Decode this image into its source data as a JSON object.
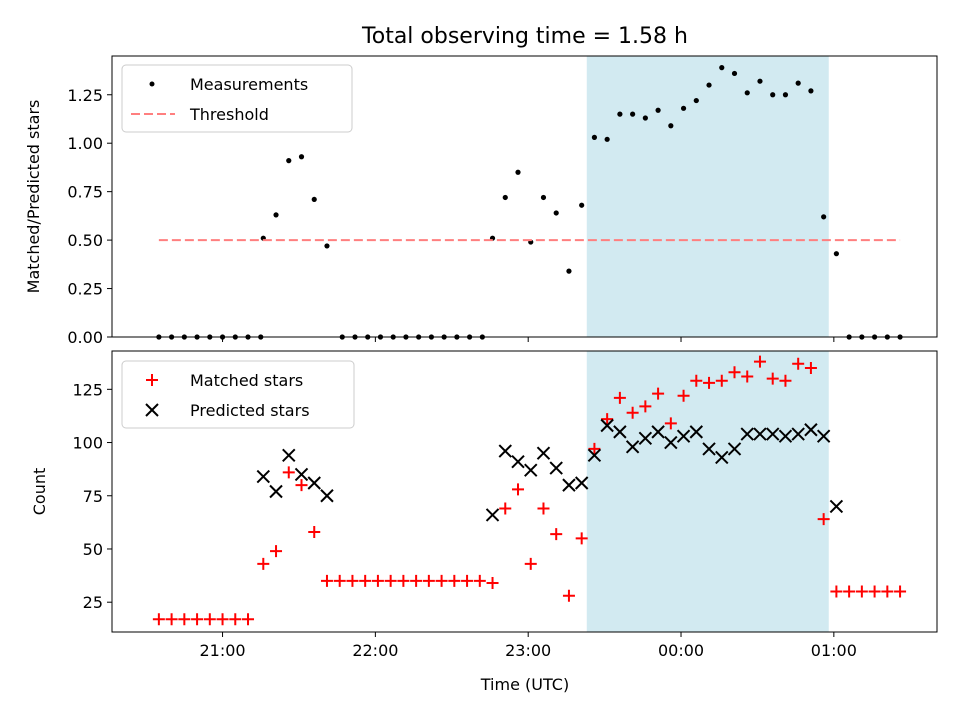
{
  "title": "Total observing time = 1.58 h",
  "colors": {
    "measurement": "#000000",
    "threshold": "#ff7f7f",
    "matched": "#ff0000",
    "predicted": "#000000",
    "span": "#add8e6"
  },
  "chart_data": [
    {
      "type": "scatter",
      "xlabel": "",
      "ylabel": "Matched/Predicted stars",
      "ylim": [
        0,
        1.45
      ],
      "yticks": [
        "0.00",
        "0.25",
        "0.50",
        "0.75",
        "1.00",
        "1.25"
      ],
      "highlight_span": [
        "23:23",
        "00:58"
      ],
      "legend": "top-left",
      "series": [
        {
          "name": "Measurements",
          "marker": "dot",
          "points": [
            [
              "20:35",
              0
            ],
            [
              "20:40",
              0
            ],
            [
              "20:45",
              0
            ],
            [
              "20:50",
              0
            ],
            [
              "20:55",
              0
            ],
            [
              "21:00",
              0
            ],
            [
              "21:05",
              0
            ],
            [
              "21:10",
              0
            ],
            [
              "21:15",
              0
            ],
            [
              "21:16",
              0.51
            ],
            [
              "21:21",
              0.63
            ],
            [
              "21:26",
              0.91
            ],
            [
              "21:31",
              0.93
            ],
            [
              "21:36",
              0.71
            ],
            [
              "21:41",
              0.47
            ],
            [
              "21:47",
              0
            ],
            [
              "21:52",
              0
            ],
            [
              "21:57",
              0
            ],
            [
              "22:02",
              0
            ],
            [
              "22:07",
              0
            ],
            [
              "22:12",
              0
            ],
            [
              "22:17",
              0
            ],
            [
              "22:22",
              0
            ],
            [
              "22:27",
              0
            ],
            [
              "22:32",
              0
            ],
            [
              "22:37",
              0
            ],
            [
              "22:42",
              0
            ],
            [
              "22:46",
              0.51
            ],
            [
              "22:51",
              0.72
            ],
            [
              "22:56",
              0.85
            ],
            [
              "23:01",
              0.49
            ],
            [
              "23:06",
              0.72
            ],
            [
              "23:11",
              0.64
            ],
            [
              "23:16",
              0.34
            ],
            [
              "23:21",
              0.68
            ],
            [
              "23:26",
              1.03
            ],
            [
              "23:31",
              1.02
            ],
            [
              "23:36",
              1.15
            ],
            [
              "23:41",
              1.15
            ],
            [
              "23:46",
              1.13
            ],
            [
              "23:51",
              1.17
            ],
            [
              "23:56",
              1.09
            ],
            [
              "00:01",
              1.18
            ],
            [
              "00:06",
              1.22
            ],
            [
              "00:11",
              1.3
            ],
            [
              "00:16",
              1.39
            ],
            [
              "00:21",
              1.36
            ],
            [
              "00:26",
              1.26
            ],
            [
              "00:31",
              1.32
            ],
            [
              "00:36",
              1.25
            ],
            [
              "00:41",
              1.25
            ],
            [
              "00:46",
              1.31
            ],
            [
              "00:51",
              1.27
            ],
            [
              "00:56",
              0.62
            ],
            [
              "01:01",
              0.43
            ],
            [
              "01:06",
              0
            ],
            [
              "01:11",
              0
            ],
            [
              "01:16",
              0
            ],
            [
              "01:21",
              0
            ],
            [
              "01:26",
              0
            ]
          ]
        },
        {
          "name": "Threshold",
          "marker": "dashed-line",
          "points": [
            [
              "20:35",
              0.5
            ],
            [
              "01:26",
              0.5
            ]
          ]
        }
      ]
    },
    {
      "type": "scatter",
      "xlabel": "Time (UTC)",
      "ylabel": "Count",
      "ylim": [
        11,
        143
      ],
      "yticks": [
        "25",
        "50",
        "75",
        "100",
        "125"
      ],
      "xticks": [
        "21:00",
        "22:00",
        "23:00",
        "00:00",
        "01:00"
      ],
      "highlight_span": [
        "23:23",
        "00:58"
      ],
      "legend": "top-left",
      "series": [
        {
          "name": "Matched stars",
          "marker": "plus",
          "points": [
            [
              "20:35",
              17
            ],
            [
              "20:40",
              17
            ],
            [
              "20:45",
              17
            ],
            [
              "20:50",
              17
            ],
            [
              "20:55",
              17
            ],
            [
              "21:00",
              17
            ],
            [
              "21:05",
              17
            ],
            [
              "21:10",
              17
            ],
            [
              "21:16",
              43
            ],
            [
              "21:21",
              49
            ],
            [
              "21:26",
              86
            ],
            [
              "21:31",
              80
            ],
            [
              "21:36",
              58
            ],
            [
              "21:41",
              35
            ],
            [
              "21:46",
              35
            ],
            [
              "21:51",
              35
            ],
            [
              "21:56",
              35
            ],
            [
              "22:01",
              35
            ],
            [
              "22:06",
              35
            ],
            [
              "22:11",
              35
            ],
            [
              "22:16",
              35
            ],
            [
              "22:21",
              35
            ],
            [
              "22:26",
              35
            ],
            [
              "22:31",
              35
            ],
            [
              "22:36",
              35
            ],
            [
              "22:41",
              35
            ],
            [
              "22:46",
              34
            ],
            [
              "22:51",
              69
            ],
            [
              "22:56",
              78
            ],
            [
              "23:01",
              43
            ],
            [
              "23:06",
              69
            ],
            [
              "23:11",
              57
            ],
            [
              "23:16",
              28
            ],
            [
              "23:21",
              55
            ],
            [
              "23:26",
              97
            ],
            [
              "23:31",
              111
            ],
            [
              "23:36",
              121
            ],
            [
              "23:41",
              114
            ],
            [
              "23:46",
              117
            ],
            [
              "23:51",
              123
            ],
            [
              "23:56",
              109
            ],
            [
              "00:01",
              122
            ],
            [
              "00:06",
              129
            ],
            [
              "00:11",
              128
            ],
            [
              "00:16",
              129
            ],
            [
              "00:21",
              133
            ],
            [
              "00:26",
              131
            ],
            [
              "00:31",
              138
            ],
            [
              "00:36",
              130
            ],
            [
              "00:41",
              129
            ],
            [
              "00:46",
              137
            ],
            [
              "00:51",
              135
            ],
            [
              "00:56",
              64
            ],
            [
              "01:01",
              30
            ],
            [
              "01:06",
              30
            ],
            [
              "01:11",
              30
            ],
            [
              "01:16",
              30
            ],
            [
              "01:21",
              30
            ],
            [
              "01:26",
              30
            ]
          ]
        },
        {
          "name": "Predicted stars",
          "marker": "x",
          "points": [
            [
              "21:16",
              84
            ],
            [
              "21:21",
              77
            ],
            [
              "21:26",
              94
            ],
            [
              "21:31",
              85
            ],
            [
              "21:36",
              81
            ],
            [
              "21:41",
              75
            ],
            [
              "22:46",
              66
            ],
            [
              "22:51",
              96
            ],
            [
              "22:56",
              91
            ],
            [
              "23:01",
              87
            ],
            [
              "23:06",
              95
            ],
            [
              "23:11",
              88
            ],
            [
              "23:16",
              80
            ],
            [
              "23:21",
              81
            ],
            [
              "23:26",
              94
            ],
            [
              "23:31",
              108
            ],
            [
              "23:36",
              105
            ],
            [
              "23:41",
              98
            ],
            [
              "23:46",
              102
            ],
            [
              "23:51",
              105
            ],
            [
              "23:56",
              100
            ],
            [
              "00:01",
              103
            ],
            [
              "00:06",
              105
            ],
            [
              "00:11",
              97
            ],
            [
              "00:16",
              93
            ],
            [
              "00:21",
              97
            ],
            [
              "00:26",
              104
            ],
            [
              "00:31",
              104
            ],
            [
              "00:36",
              104
            ],
            [
              "00:41",
              103
            ],
            [
              "00:46",
              104
            ],
            [
              "00:51",
              106
            ],
            [
              "00:56",
              103
            ],
            [
              "01:01",
              70
            ]
          ]
        }
      ]
    }
  ]
}
